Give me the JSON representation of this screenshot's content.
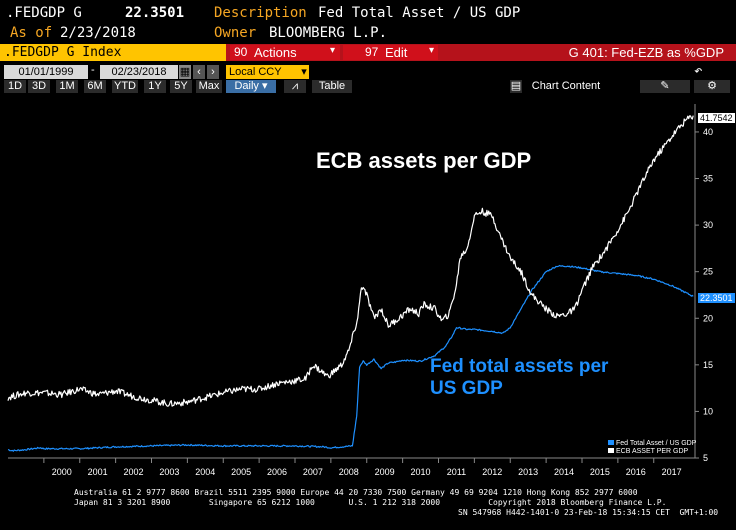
{
  "header": {
    "ticker": ".FEDGDP G",
    "value": "22.3501",
    "description_label": "Description",
    "description": "Fed Total Asset / US GDP",
    "asof_label": "As of",
    "asof_date": "2/23/2018",
    "owner_label": "Owner",
    "owner": "BLOOMBERG L.P."
  },
  "toolbar": {
    "index_label": ".FEDGDP G Index",
    "actions_label": "Actions",
    "actions_num": "90",
    "edit_label": "Edit",
    "edit_num": "97",
    "chart_title": "G 401: Fed-EZB as %GDP"
  },
  "dates": {
    "start": "01/01/1999",
    "end": "02/23/2018",
    "currency": "Local CCY"
  },
  "ranges": [
    "1D",
    "3D",
    "1M",
    "6M",
    "YTD",
    "1Y",
    "5Y",
    "Max"
  ],
  "period": "Daily",
  "table_label": "Table",
  "chart_content_label": "Chart Content",
  "chart": {
    "annotation_ecb": "ECB assets per GDP",
    "annotation_fed_line1": "Fed total assets per",
    "annotation_fed_line2": "US GDP",
    "last_ecb": "41.7542",
    "last_fed": "22.3501",
    "legend_fed": "Fed Total Asset / US GDP",
    "legend_ecb": "ECB ASSET PER GDP"
  },
  "footer": {
    "line1": "Australia 61 2 9777 8600 Brazil 5511 2395 9000 Europe 44 20 7330 7500 Germany 49 69 9204 1210 Hong Kong 852 2977 6000",
    "line2": "Japan 81 3 3201 8900        Singapore 65 6212 1000       U.S. 1 212 318 2000          Copyright 2018 Bloomberg Finance L.P.",
    "line3": "SN 547968 H442-1401-0 23-Feb-18 15:34:15 CET  GMT+1:00"
  },
  "colors": {
    "fed": "#1e90ff",
    "ecb": "#ffffff",
    "orange": "#f5a623",
    "red_bar": "#b5121b",
    "yellow_bar": "#ffc400"
  },
  "chart_data": {
    "type": "line",
    "x_ticks": [
      "2000",
      "2001",
      "2002",
      "2003",
      "2004",
      "2005",
      "2006",
      "2007",
      "2008",
      "2009",
      "2010",
      "2011",
      "2012",
      "2013",
      "2014",
      "2015",
      "2016",
      "2017"
    ],
    "y_ticks": [
      5,
      10,
      15,
      20,
      25,
      30,
      35,
      40
    ],
    "ylim": [
      5,
      43
    ],
    "xlim": [
      1999.0,
      2018.15
    ],
    "series": [
      {
        "name": "Fed Total Asset / US GDP",
        "x": [
          1999.0,
          1999.1,
          1999.2,
          1999.5,
          1999.9,
          2000.0,
          2000.5,
          2001.0,
          2001.5,
          2002.0,
          2003.0,
          2004.0,
          2005.0,
          2006.0,
          2007.0,
          2007.8,
          2008.0,
          2008.6,
          2008.72,
          2008.8,
          2008.9,
          2009.0,
          2009.2,
          2009.4,
          2009.6,
          2009.8,
          2010.0,
          2010.5,
          2010.9,
          2011.2,
          2011.4,
          2011.5,
          2011.8,
          2012.0,
          2012.5,
          2012.8,
          2013.0,
          2013.3,
          2013.6,
          2014.0,
          2014.3,
          2014.6,
          2015.0,
          2015.5,
          2016.0,
          2016.5,
          2017.0,
          2017.5,
          2018.1
        ],
        "values": [
          5.9,
          5.8,
          5.8,
          5.9,
          6.1,
          6.0,
          6.0,
          6.0,
          6.1,
          6.2,
          6.3,
          6.4,
          6.3,
          6.3,
          6.3,
          6.2,
          6.1,
          6.3,
          9.5,
          14.8,
          15.4,
          15.0,
          15.6,
          14.6,
          15.2,
          15.3,
          15.5,
          15.4,
          16.0,
          17.0,
          18.2,
          19.0,
          18.8,
          18.8,
          18.6,
          18.4,
          19.0,
          21.0,
          23.0,
          25.0,
          25.6,
          25.6,
          25.4,
          25.0,
          24.8,
          24.6,
          24.2,
          23.5,
          22.35
        ]
      },
      {
        "name": "ECB ASSET PER GDP",
        "x": [
          1999.0,
          1999.5,
          2000.0,
          2000.5,
          2001.0,
          2001.5,
          2002.0,
          2002.5,
          2003.0,
          2003.5,
          2004.0,
          2004.5,
          2005.0,
          2005.5,
          2006.0,
          2006.5,
          2007.0,
          2007.3,
          2007.5,
          2007.9,
          2008.0,
          2008.3,
          2008.5,
          2008.75,
          2008.85,
          2009.0,
          2009.2,
          2009.4,
          2009.6,
          2009.9,
          2010.2,
          2010.45,
          2010.6,
          2010.9,
          2011.1,
          2011.3,
          2011.5,
          2011.6,
          2011.8,
          2012.0,
          2012.2,
          2012.5,
          2012.7,
          2013.0,
          2013.3,
          2013.6,
          2014.0,
          2014.3,
          2014.6,
          2014.8,
          2015.0,
          2015.3,
          2015.6,
          2016.0,
          2016.3,
          2016.6,
          2017.0,
          2017.3,
          2017.6,
          2017.9,
          2018.1
        ],
        "values": [
          11.5,
          12.0,
          12.0,
          11.8,
          12.4,
          11.8,
          12.2,
          11.6,
          11.2,
          10.8,
          11.0,
          11.5,
          12.0,
          12.4,
          12.4,
          13.0,
          13.3,
          13.5,
          15.0,
          13.8,
          14.0,
          15.0,
          16.5,
          20.0,
          23.5,
          22.5,
          20.0,
          21.0,
          19.2,
          20.0,
          21.0,
          20.5,
          21.5,
          21.0,
          19.7,
          20.5,
          23.5,
          26.5,
          27.5,
          31.0,
          31.5,
          31.0,
          29.0,
          26.5,
          25.0,
          22.5,
          21.0,
          20.2,
          20.5,
          21.0,
          23.0,
          25.5,
          27.0,
          29.5,
          31.5,
          34.0,
          37.0,
          38.5,
          40.0,
          41.3,
          41.75
        ]
      }
    ]
  }
}
